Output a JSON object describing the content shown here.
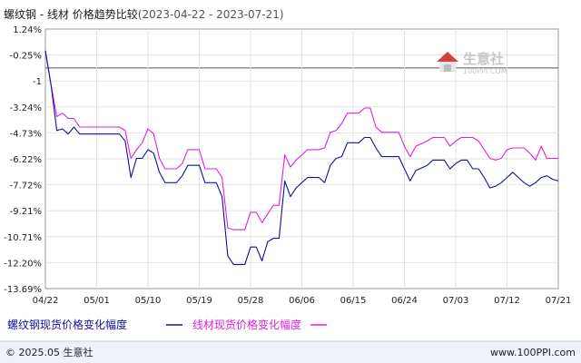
{
  "chart_data": {
    "type": "line",
    "title": "螺纹钢 - 线材 价格趋势比较",
    "date_range": "(2023-04-22 - 2023-07-21)",
    "x_ticks": [
      "04/22",
      "05/01",
      "05/10",
      "05/19",
      "05/28",
      "06/06",
      "06/15",
      "06/24",
      "07/03",
      "07/12",
      "07/21"
    ],
    "y_ticks": [
      "1.24%",
      "-0.25%",
      "-1",
      "-3.24%",
      "-4.73%",
      "-6.22%",
      "-7.72%",
      "-9.21%",
      "-10.71%",
      "-12.20%",
      "-13.69%"
    ],
    "ylim": [
      -13.69,
      1.24
    ],
    "x_start": "2023-04-22",
    "x_end": "2023-07-21",
    "series": [
      {
        "name": "螺纹钢现货价格变化幅度",
        "color": "#1010a0",
        "points": [
          [
            "2023-04-22",
            0.0
          ],
          [
            "2023-04-23",
            -2.0
          ],
          [
            "2023-04-24",
            -4.6
          ],
          [
            "2023-04-25",
            -4.5
          ],
          [
            "2023-04-26",
            -4.8
          ],
          [
            "2023-04-27",
            -4.4
          ],
          [
            "2023-04-28",
            -4.8
          ],
          [
            "2023-05-01",
            -4.8
          ],
          [
            "2023-05-05",
            -4.8
          ],
          [
            "2023-05-06",
            -5.2
          ],
          [
            "2023-05-07",
            -7.3
          ],
          [
            "2023-05-08",
            -6.2
          ],
          [
            "2023-05-09",
            -6.2
          ],
          [
            "2023-05-10",
            -5.7
          ],
          [
            "2023-05-11",
            -5.9
          ],
          [
            "2023-05-12",
            -7.0
          ],
          [
            "2023-05-13",
            -7.6
          ],
          [
            "2023-05-15",
            -7.6
          ],
          [
            "2023-05-16",
            -7.2
          ],
          [
            "2023-05-17",
            -6.6
          ],
          [
            "2023-05-19",
            -6.6
          ],
          [
            "2023-05-20",
            -7.6
          ],
          [
            "2023-05-22",
            -7.6
          ],
          [
            "2023-05-23",
            -8.4
          ],
          [
            "2023-05-24",
            -11.8
          ],
          [
            "2023-05-25",
            -12.3
          ],
          [
            "2023-05-27",
            -12.3
          ],
          [
            "2023-05-28",
            -11.3
          ],
          [
            "2023-05-29",
            -11.3
          ],
          [
            "2023-05-30",
            -12.1
          ],
          [
            "2023-05-31",
            -11.0
          ],
          [
            "2023-06-01",
            -10.8
          ],
          [
            "2023-06-02",
            -10.8
          ],
          [
            "2023-06-03",
            -7.5
          ],
          [
            "2023-06-04",
            -8.4
          ],
          [
            "2023-06-05",
            -7.9
          ],
          [
            "2023-06-06",
            -7.6
          ],
          [
            "2023-06-07",
            -7.3
          ],
          [
            "2023-06-09",
            -7.3
          ],
          [
            "2023-06-10",
            -7.6
          ],
          [
            "2023-06-11",
            -6.6
          ],
          [
            "2023-06-12",
            -6.2
          ],
          [
            "2023-06-13",
            -6.1
          ],
          [
            "2023-06-14",
            -5.3
          ],
          [
            "2023-06-16",
            -5.3
          ],
          [
            "2023-06-17",
            -5.0
          ],
          [
            "2023-06-18",
            -5.0
          ],
          [
            "2023-06-19",
            -5.6
          ],
          [
            "2023-06-20",
            -6.1
          ],
          [
            "2023-06-23",
            -6.1
          ],
          [
            "2023-06-24",
            -6.8
          ],
          [
            "2023-06-25",
            -7.5
          ],
          [
            "2023-06-26",
            -6.9
          ],
          [
            "2023-06-28",
            -6.6
          ],
          [
            "2023-06-29",
            -6.3
          ],
          [
            "2023-07-01",
            -6.3
          ],
          [
            "2023-07-02",
            -6.8
          ],
          [
            "2023-07-03",
            -6.5
          ],
          [
            "2023-07-04",
            -6.3
          ],
          [
            "2023-07-05",
            -6.3
          ],
          [
            "2023-07-06",
            -6.8
          ],
          [
            "2023-07-07",
            -6.8
          ],
          [
            "2023-07-08",
            -7.3
          ],
          [
            "2023-07-09",
            -7.9
          ],
          [
            "2023-07-10",
            -7.8
          ],
          [
            "2023-07-11",
            -7.6
          ],
          [
            "2023-07-12",
            -7.3
          ],
          [
            "2023-07-13",
            -7.0
          ],
          [
            "2023-07-14",
            -7.3
          ],
          [
            "2023-07-15",
            -7.6
          ],
          [
            "2023-07-16",
            -7.8
          ],
          [
            "2023-07-17",
            -7.6
          ],
          [
            "2023-07-18",
            -7.3
          ],
          [
            "2023-07-19",
            -7.2
          ],
          [
            "2023-07-20",
            -7.4
          ],
          [
            "2023-07-21",
            -7.5
          ]
        ]
      },
      {
        "name": "线材现货价格变化幅度",
        "color": "#e020e0",
        "points": [
          [
            "2023-04-22",
            0.0
          ],
          [
            "2023-04-23",
            -2.0
          ],
          [
            "2023-04-24",
            -3.8
          ],
          [
            "2023-04-25",
            -3.6
          ],
          [
            "2023-04-26",
            -3.9
          ],
          [
            "2023-04-27",
            -3.9
          ],
          [
            "2023-04-28",
            -4.4
          ],
          [
            "2023-05-01",
            -4.4
          ],
          [
            "2023-05-05",
            -4.4
          ],
          [
            "2023-05-06",
            -4.6
          ],
          [
            "2023-05-07",
            -6.2
          ],
          [
            "2023-05-08",
            -5.7
          ],
          [
            "2023-05-09",
            -5.3
          ],
          [
            "2023-05-10",
            -4.5
          ],
          [
            "2023-05-11",
            -4.8
          ],
          [
            "2023-05-12",
            -6.2
          ],
          [
            "2023-05-13",
            -6.8
          ],
          [
            "2023-05-15",
            -6.8
          ],
          [
            "2023-05-16",
            -6.5
          ],
          [
            "2023-05-17",
            -5.7
          ],
          [
            "2023-05-19",
            -5.7
          ],
          [
            "2023-05-20",
            -6.8
          ],
          [
            "2023-05-22",
            -6.8
          ],
          [
            "2023-05-23",
            -7.3
          ],
          [
            "2023-05-24",
            -10.2
          ],
          [
            "2023-05-25",
            -10.3
          ],
          [
            "2023-05-27",
            -10.3
          ],
          [
            "2023-05-28",
            -9.3
          ],
          [
            "2023-05-29",
            -9.3
          ],
          [
            "2023-05-30",
            -9.9
          ],
          [
            "2023-05-31",
            -9.4
          ],
          [
            "2023-06-01",
            -8.9
          ],
          [
            "2023-06-02",
            -8.9
          ],
          [
            "2023-06-03",
            -6.0
          ],
          [
            "2023-06-04",
            -6.7
          ],
          [
            "2023-06-05",
            -6.3
          ],
          [
            "2023-06-06",
            -6.0
          ],
          [
            "2023-06-07",
            -5.7
          ],
          [
            "2023-06-09",
            -5.7
          ],
          [
            "2023-06-10",
            -5.6
          ],
          [
            "2023-06-11",
            -4.7
          ],
          [
            "2023-06-12",
            -4.6
          ],
          [
            "2023-06-13",
            -4.2
          ],
          [
            "2023-06-14",
            -3.6
          ],
          [
            "2023-06-16",
            -3.6
          ],
          [
            "2023-06-17",
            -3.3
          ],
          [
            "2023-06-18",
            -3.3
          ],
          [
            "2023-06-19",
            -4.4
          ],
          [
            "2023-06-20",
            -4.7
          ],
          [
            "2023-06-23",
            -4.7
          ],
          [
            "2023-06-24",
            -5.5
          ],
          [
            "2023-06-25",
            -6.1
          ],
          [
            "2023-06-26",
            -5.5
          ],
          [
            "2023-06-28",
            -5.2
          ],
          [
            "2023-06-29",
            -5.0
          ],
          [
            "2023-07-01",
            -5.0
          ],
          [
            "2023-07-02",
            -5.5
          ],
          [
            "2023-07-03",
            -5.2
          ],
          [
            "2023-07-04",
            -5.0
          ],
          [
            "2023-07-05",
            -5.0
          ],
          [
            "2023-07-06",
            -5.0
          ],
          [
            "2023-07-07",
            -5.2
          ],
          [
            "2023-07-08",
            -5.7
          ],
          [
            "2023-07-09",
            -6.2
          ],
          [
            "2023-07-10",
            -6.3
          ],
          [
            "2023-07-11",
            -6.2
          ],
          [
            "2023-07-12",
            -5.7
          ],
          [
            "2023-07-13",
            -5.6
          ],
          [
            "2023-07-15",
            -5.6
          ],
          [
            "2023-07-16",
            -5.9
          ],
          [
            "2023-07-17",
            -6.3
          ],
          [
            "2023-07-18",
            -5.5
          ],
          [
            "2023-07-19",
            -6.2
          ],
          [
            "2023-07-20",
            -6.2
          ],
          [
            "2023-07-21",
            -6.2
          ]
        ]
      }
    ],
    "grid": "vertical-and-horizontal",
    "reference_line": -1
  },
  "watermark": {
    "text": "生意社",
    "url": "100PPI.COM",
    "logo_color": "#cc3333"
  },
  "footer": {
    "copyright": "© 2025.05 生意社",
    "site": "www.100PPI.com"
  }
}
